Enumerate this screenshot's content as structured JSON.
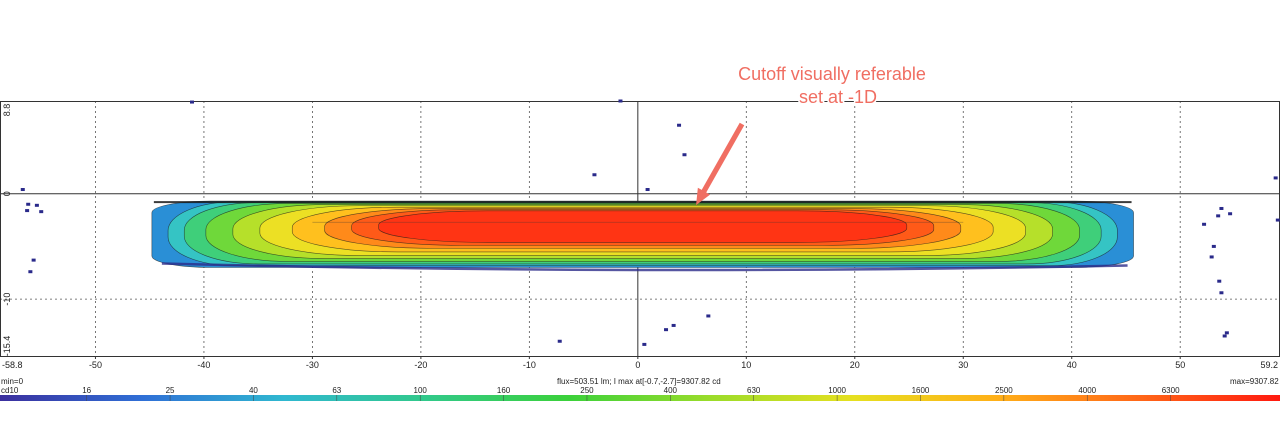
{
  "chart_data": {
    "type": "heatmap",
    "title": "",
    "xlabel": "",
    "ylabel": "",
    "xlim": [
      -58.8,
      59.2
    ],
    "ylim": [
      -15.4,
      8.8
    ],
    "x_ticks": [
      -50,
      -40,
      -30,
      -20,
      -10,
      0,
      10,
      20,
      30,
      40,
      50
    ],
    "y_ticks": [
      0,
      -10
    ],
    "x_edge_labels": [
      "-58.8",
      "59.2"
    ],
    "y_edge_labels": [
      "8.8",
      "-15.4"
    ],
    "grid": true,
    "scale_ticks": [
      "10",
      "16",
      "25",
      "40",
      "63",
      "100",
      "160",
      "250",
      "400",
      "630",
      "1000",
      "1600",
      "2500",
      "4000",
      "6300"
    ],
    "scale_colors": [
      "#3b2f9e",
      "#2f6fd6",
      "#2fb8d0",
      "#31c98a",
      "#3bd13a",
      "#9bdc2a",
      "#e6e020",
      "#ffb018",
      "#ff6818",
      "#ff1a10"
    ],
    "info": {
      "min": "min=0",
      "flux": "flux=503.51 lm; I max at[-0.7,-2.7]=9307.82 cd",
      "max": "max=9307.82",
      "scale_unit": "cd"
    },
    "annotation": {
      "lines": [
        "Cutoff visually referable",
        "set at -1D"
      ],
      "color": "#f06e62",
      "points_to": [
        5.0,
        -0.7
      ]
    },
    "beam_pattern": {
      "x_range": [
        -44.8,
        45.7
      ],
      "y_range": [
        -7.0,
        -0.7
      ],
      "peak": [
        -0.7,
        -2.7
      ],
      "max_cd": 9307.82
    },
    "stray_points": [
      [
        -41.1,
        8.7
      ],
      [
        -1.6,
        8.8
      ],
      [
        3.8,
        6.5
      ],
      [
        4.3,
        3.7
      ],
      [
        -4.0,
        1.8
      ],
      [
        0.9,
        0.4
      ],
      [
        -56.7,
        0.4
      ],
      [
        -56.2,
        -1.0
      ],
      [
        -55.4,
        -1.1
      ],
      [
        -55.0,
        -1.7
      ],
      [
        -56.3,
        -1.6
      ],
      [
        -55.7,
        -6.3
      ],
      [
        -56.0,
        -7.4
      ],
      [
        52.2,
        -2.9
      ],
      [
        53.8,
        -1.4
      ],
      [
        53.5,
        -2.1
      ],
      [
        53.1,
        -5.0
      ],
      [
        52.9,
        -6.0
      ],
      [
        53.6,
        -8.3
      ],
      [
        53.8,
        -9.4
      ],
      [
        54.1,
        -13.5
      ],
      [
        54.3,
        -13.2
      ],
      [
        54.6,
        -1.9
      ],
      [
        58.8,
        1.5
      ],
      [
        59.0,
        -2.5
      ],
      [
        3.3,
        -12.5
      ],
      [
        2.6,
        -12.9
      ],
      [
        6.5,
        -11.6
      ],
      [
        -7.2,
        -14.0
      ],
      [
        0.6,
        -14.3
      ]
    ]
  }
}
